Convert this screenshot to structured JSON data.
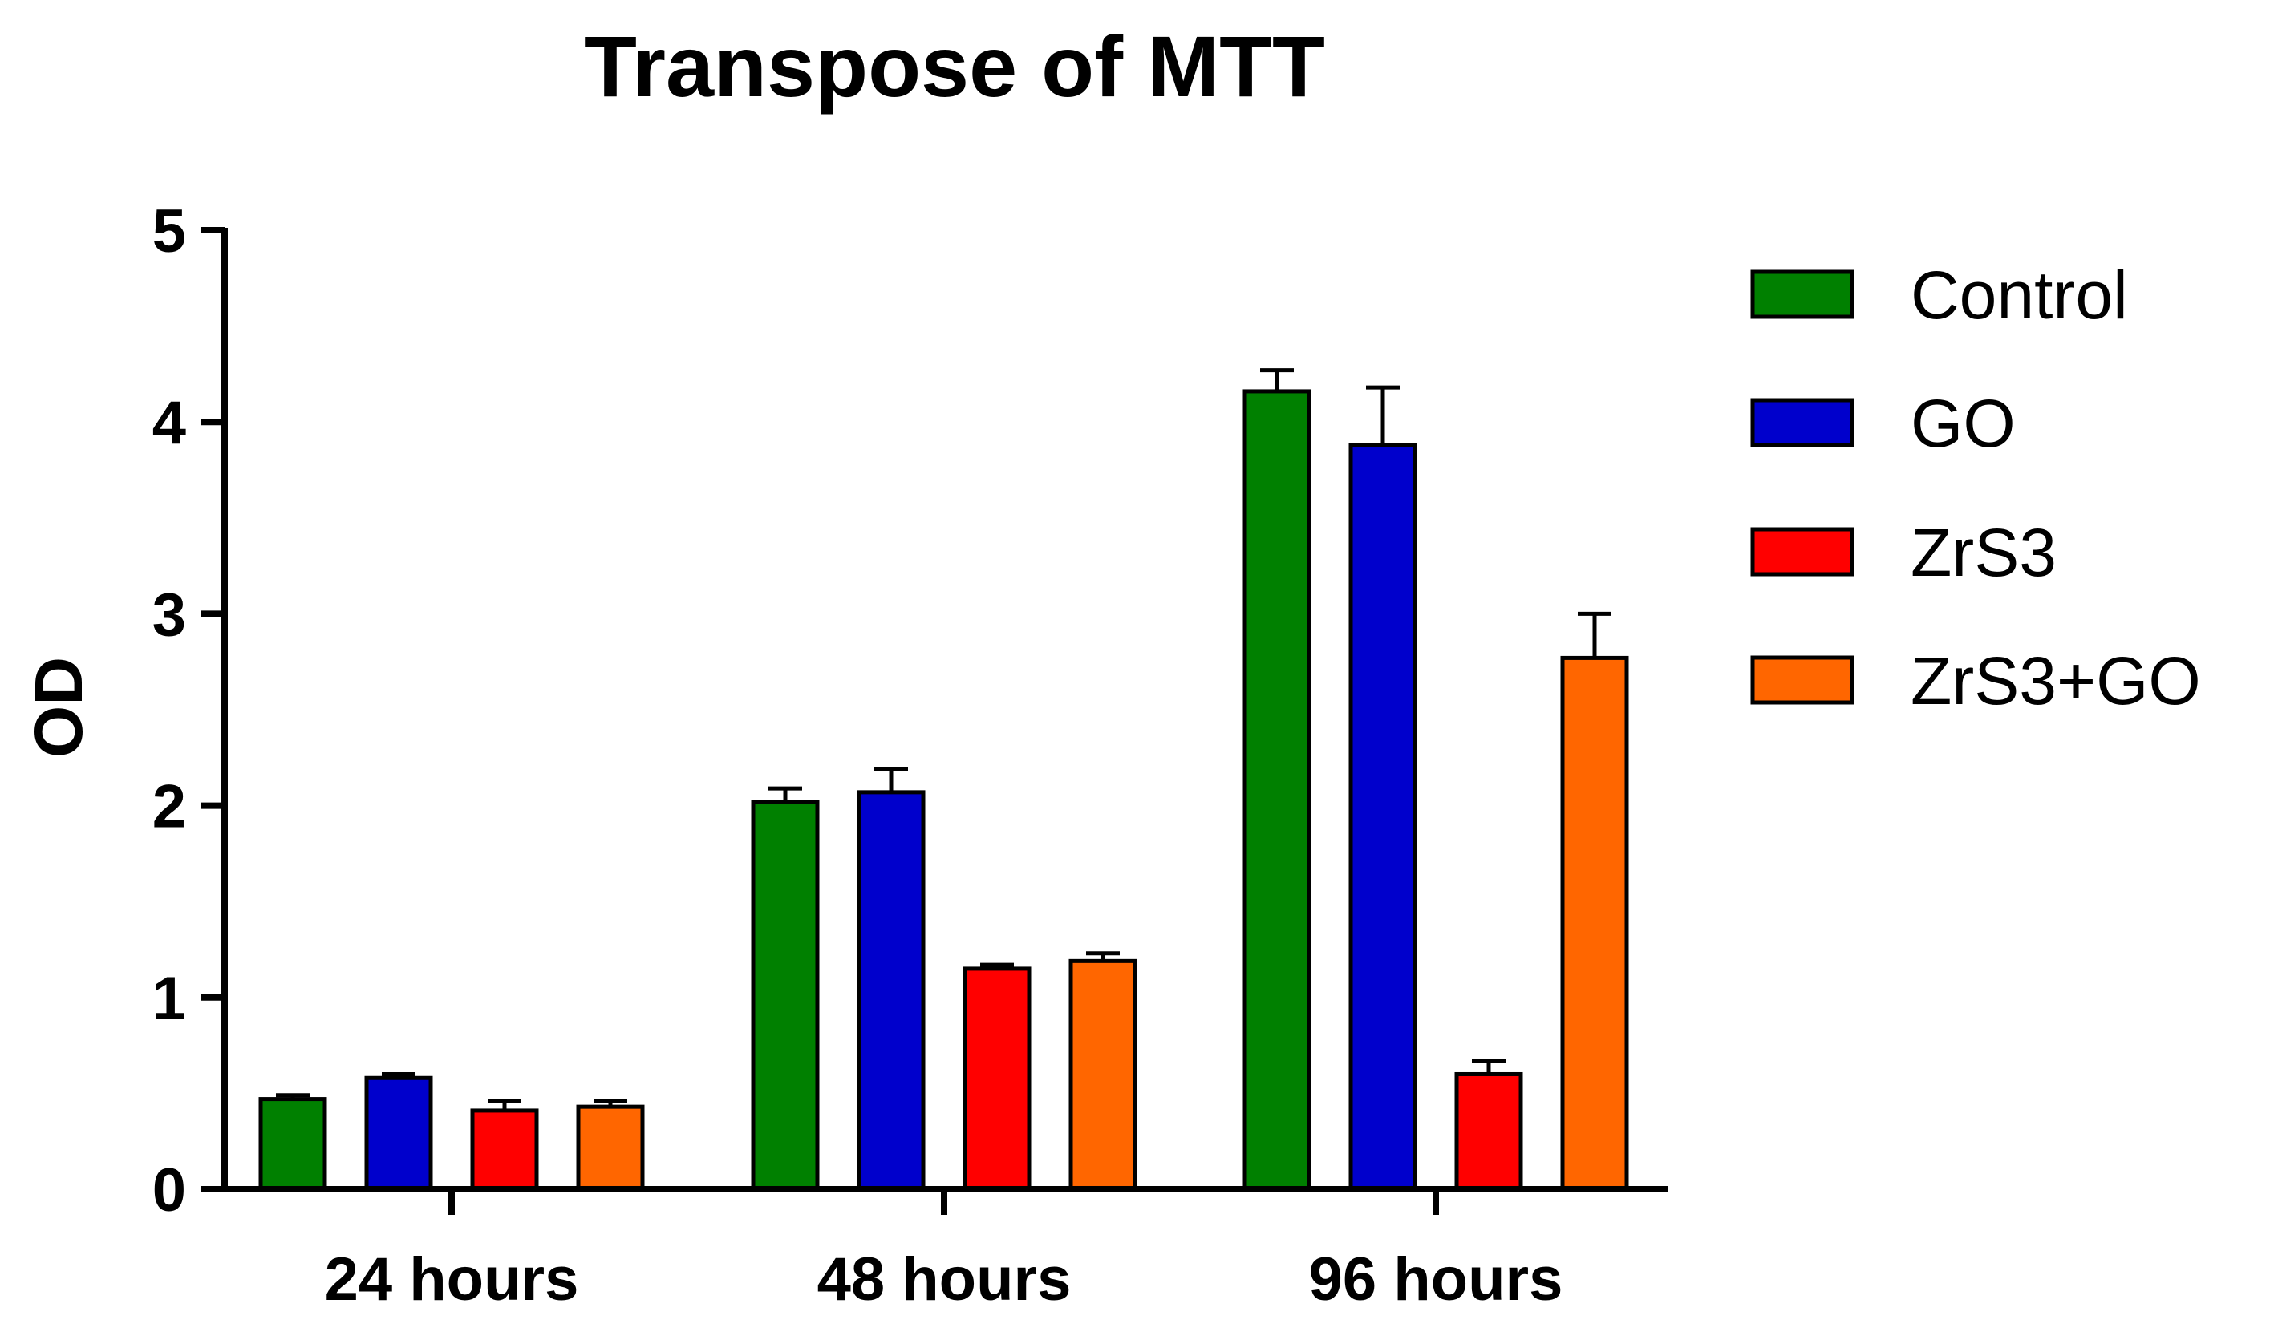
{
  "chart_data": {
    "type": "bar",
    "title": "Transpose of MTT",
    "xlabel": "",
    "ylabel": "OD",
    "ylim": [
      0,
      5
    ],
    "yticks": [
      "0",
      "1",
      "2",
      "3",
      "4",
      "5"
    ],
    "categories": [
      "24 hours",
      "48 hours",
      "96 hours"
    ],
    "grid": false,
    "legend_position": "right",
    "series": [
      {
        "name": "Control",
        "color": "#008000",
        "values": [
          0.47,
          2.02,
          4.16
        ],
        "errors": [
          0.02,
          0.07,
          0.11
        ]
      },
      {
        "name": "GO",
        "color": "#0000CC",
        "values": [
          0.58,
          2.07,
          3.88
        ],
        "errors": [
          0.02,
          0.12,
          0.3
        ]
      },
      {
        "name": "ZrS3",
        "color": "#FF0000",
        "values": [
          0.41,
          1.15,
          0.6
        ],
        "errors": [
          0.05,
          0.02,
          0.07
        ]
      },
      {
        "name": "ZrS3+GO",
        "color": "#FF6600",
        "values": [
          0.43,
          1.19,
          2.77
        ],
        "errors": [
          0.03,
          0.04,
          0.23
        ]
      }
    ]
  }
}
